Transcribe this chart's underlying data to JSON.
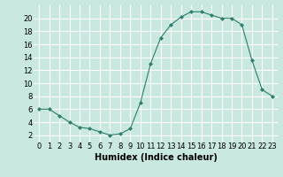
{
  "x": [
    0,
    1,
    2,
    3,
    4,
    5,
    6,
    7,
    8,
    9,
    10,
    11,
    12,
    13,
    14,
    15,
    16,
    17,
    18,
    19,
    20,
    21,
    22,
    23
  ],
  "y": [
    6,
    6,
    5,
    4,
    3.2,
    3,
    2.5,
    2,
    2.2,
    3,
    7,
    13,
    17,
    19,
    20.2,
    21,
    21,
    20.5,
    20,
    20,
    19,
    13.5,
    9,
    8
  ],
  "line_color": "#2e7d6e",
  "marker": "D",
  "marker_size": 2,
  "bg_color": "#c8e8e0",
  "grid_color": "#ffffff",
  "xlabel": "Humidex (Indice chaleur)",
  "xlim": [
    -0.5,
    23.5
  ],
  "ylim": [
    1,
    22
  ],
  "xticks": [
    0,
    1,
    2,
    3,
    4,
    5,
    6,
    7,
    8,
    9,
    10,
    11,
    12,
    13,
    14,
    15,
    16,
    17,
    18,
    19,
    20,
    21,
    22,
    23
  ],
  "yticks": [
    2,
    4,
    6,
    8,
    10,
    12,
    14,
    16,
    18,
    20
  ],
  "xlabel_fontsize": 7,
  "tick_fontsize": 6
}
